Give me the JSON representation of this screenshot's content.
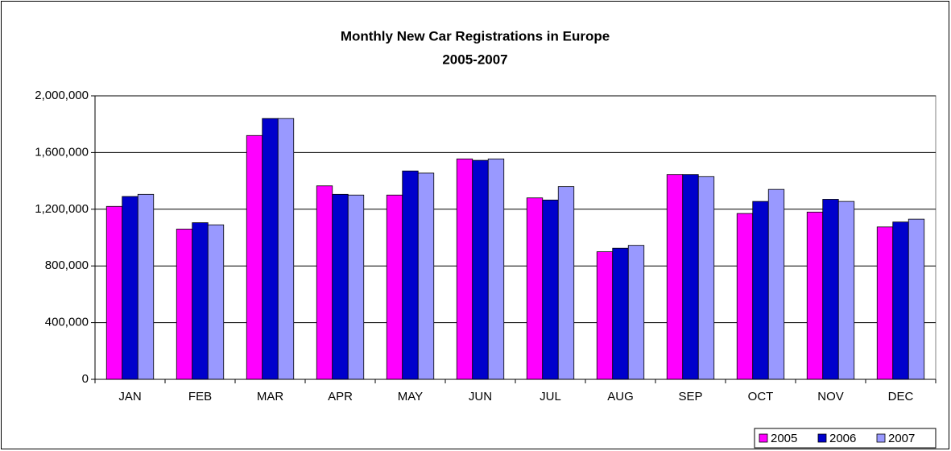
{
  "chart_data": {
    "type": "bar",
    "title": "Monthly New Car Registrations in Europe",
    "subtitle": "2005-2007",
    "categories": [
      "JAN",
      "FEB",
      "MAR",
      "APR",
      "MAY",
      "JUN",
      "JUL",
      "AUG",
      "SEP",
      "OCT",
      "NOV",
      "DEC"
    ],
    "series": [
      {
        "name": "2005",
        "color": "#ff00ff",
        "values": [
          1220000,
          1060000,
          1720000,
          1365000,
          1300000,
          1555000,
          1280000,
          900000,
          1445000,
          1170000,
          1180000,
          1075000
        ]
      },
      {
        "name": "2006",
        "color": "#0000cc",
        "values": [
          1290000,
          1105000,
          1840000,
          1305000,
          1470000,
          1545000,
          1265000,
          925000,
          1445000,
          1255000,
          1270000,
          1110000
        ]
      },
      {
        "name": "2007",
        "color": "#9999ff",
        "values": [
          1305000,
          1090000,
          1840000,
          1300000,
          1455000,
          1555000,
          1360000,
          945000,
          1430000,
          1340000,
          1255000,
          1130000
        ]
      }
    ],
    "ylim": [
      0,
      2000000
    ],
    "yticks": [
      0,
      {
        "value": 400000,
        "label": "400,000"
      },
      {
        "value": 800000,
        "label": "800,000"
      },
      {
        "value": 1200000,
        "label": "1,200,000"
      },
      {
        "value": 1600000,
        "label": "1,600,000"
      },
      {
        "value": 2000000,
        "label": "2,000,000"
      }
    ],
    "grid": true,
    "legend": "bottom-right"
  }
}
